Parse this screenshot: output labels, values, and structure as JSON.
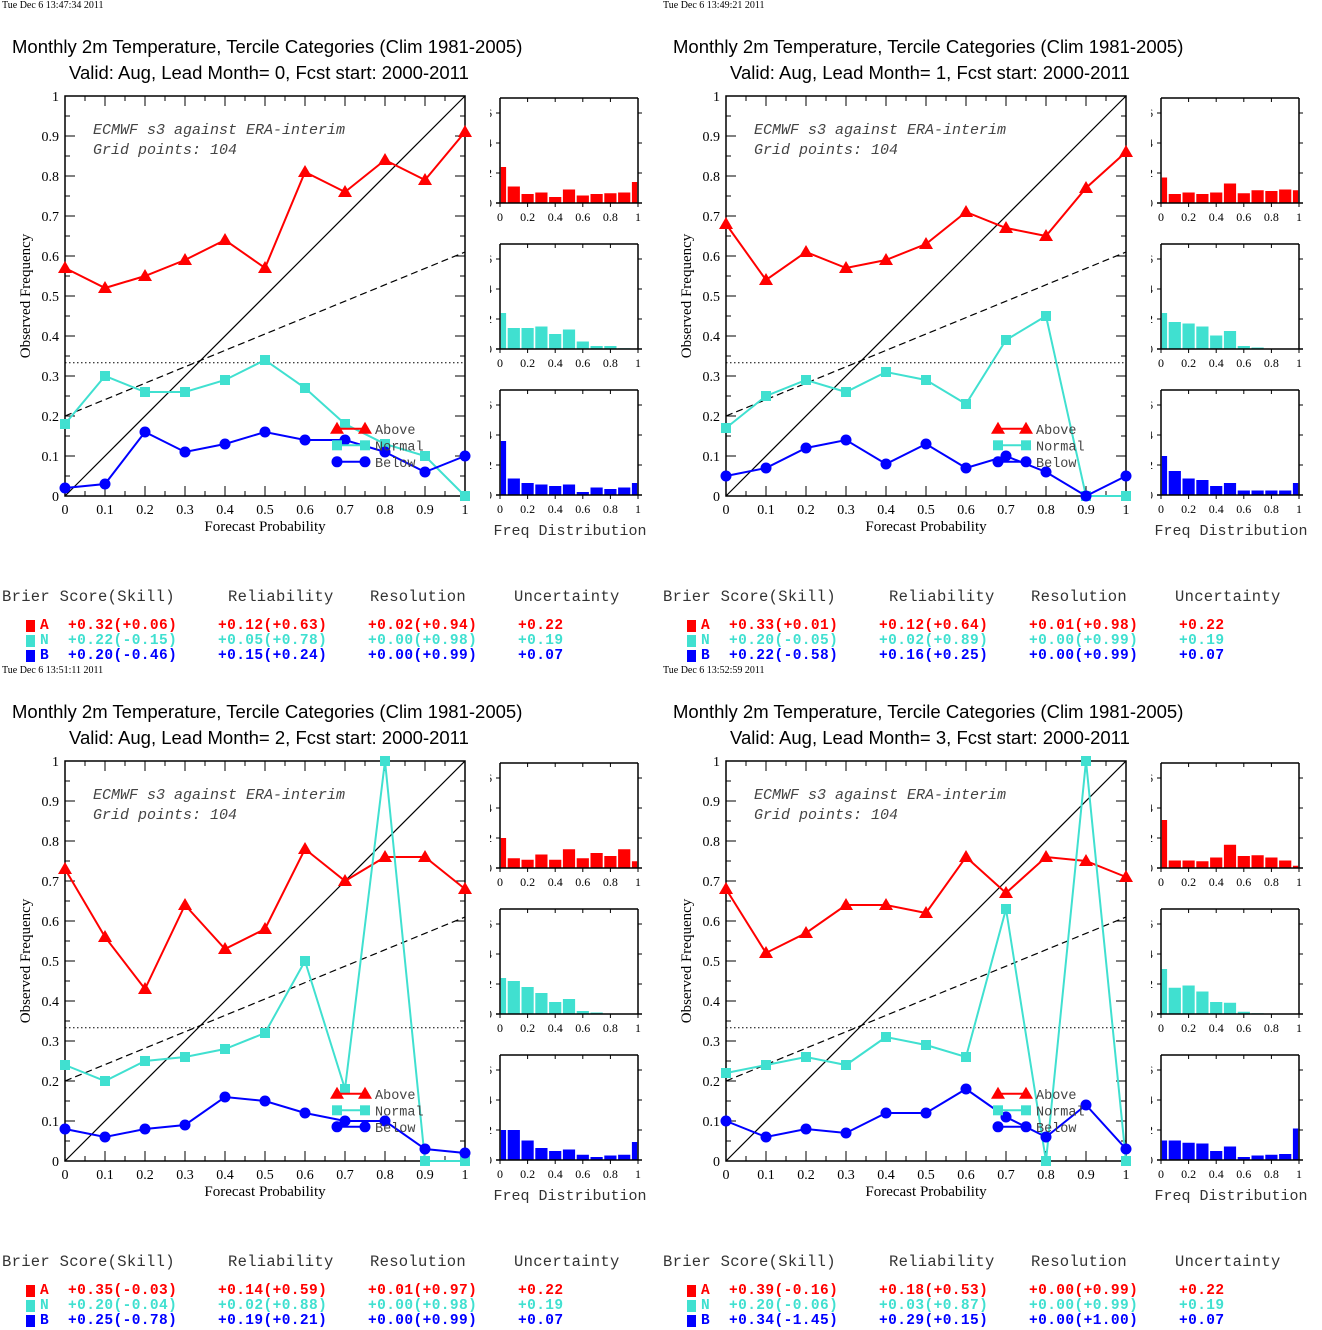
{
  "colors": {
    "above": "#ff0000",
    "normal": "#40e0d0",
    "below": "#0000ff",
    "axis": "#000000"
  },
  "panels": [
    {
      "timestamp": "Tue Dec  6 13:47:34 2011",
      "title": "Monthly 2m Temperature, Tercile Categories (Clim 1981-2005)",
      "subtitle": "Valid: Aug, Lead Month= 0, Fcst start: 2000-2011",
      "annotation_line1": "ECMWF s3 against ERA-interim",
      "annotation_line2": "Grid points:  104",
      "xlabel": "Forecast Probability",
      "ylabel": "Observed Frequency",
      "hist_label": "Freq Distribution",
      "legend": [
        "Above",
        "Normal",
        "Below"
      ],
      "stats": {
        "headers": [
          "Brier Score(Skill)",
          "Reliability",
          "Resolution",
          "Uncertainty"
        ],
        "rows": [
          {
            "label": "A",
            "cat": "above",
            "brier": "+0.32(+0.06)",
            "reliability": "+0.12(+0.63)",
            "resolution": "+0.02(+0.94)",
            "uncertainty": "+0.22"
          },
          {
            "label": "N",
            "cat": "normal",
            "brier": "+0.22(-0.15)",
            "reliability": "+0.05(+0.78)",
            "resolution": "+0.00(+0.98)",
            "uncertainty": "+0.19"
          },
          {
            "label": "B",
            "cat": "below",
            "brier": "+0.20(-0.46)",
            "reliability": "+0.15(+0.24)",
            "resolution": "+0.00(+0.99)",
            "uncertainty": "+0.07"
          }
        ]
      }
    },
    {
      "timestamp": "Tue Dec  6 13:49:21 2011",
      "title": "Monthly 2m Temperature, Tercile Categories (Clim 1981-2005)",
      "subtitle": "Valid: Aug, Lead Month= 1, Fcst start: 2000-2011",
      "annotation_line1": "ECMWF s3 against ERA-interim",
      "annotation_line2": "Grid points:  104",
      "xlabel": "Forecast Probability",
      "ylabel": "Observed Frequency",
      "hist_label": "Freq Distribution",
      "legend": [
        "Above",
        "Normal",
        "Below"
      ],
      "stats": {
        "headers": [
          "Brier Score(Skill)",
          "Reliability",
          "Resolution",
          "Uncertainty"
        ],
        "rows": [
          {
            "label": "A",
            "cat": "above",
            "brier": "+0.33(+0.01)",
            "reliability": "+0.12(+0.64)",
            "resolution": "+0.01(+0.98)",
            "uncertainty": "+0.22"
          },
          {
            "label": "N",
            "cat": "normal",
            "brier": "+0.20(-0.05)",
            "reliability": "+0.02(+0.89)",
            "resolution": "+0.00(+0.99)",
            "uncertainty": "+0.19"
          },
          {
            "label": "B",
            "cat": "below",
            "brier": "+0.22(-0.58)",
            "reliability": "+0.16(+0.25)",
            "resolution": "+0.00(+0.99)",
            "uncertainty": "+0.07"
          }
        ]
      }
    },
    {
      "timestamp": "Tue Dec  6 13:51:11 2011",
      "title": "Monthly 2m Temperature, Tercile Categories (Clim 1981-2005)",
      "subtitle": "Valid: Aug, Lead Month= 2, Fcst start: 2000-2011",
      "annotation_line1": "ECMWF s3 against ERA-interim",
      "annotation_line2": "Grid points:  104",
      "xlabel": "Forecast Probability",
      "ylabel": "Observed Frequency",
      "hist_label": "Freq Distribution",
      "legend": [
        "Above",
        "Normal",
        "Below"
      ],
      "stats": {
        "headers": [
          "Brier Score(Skill)",
          "Reliability",
          "Resolution",
          "Uncertainty"
        ],
        "rows": [
          {
            "label": "A",
            "cat": "above",
            "brier": "+0.35(-0.03)",
            "reliability": "+0.14(+0.59)",
            "resolution": "+0.01(+0.97)",
            "uncertainty": "+0.22"
          },
          {
            "label": "N",
            "cat": "normal",
            "brier": "+0.20(-0.04)",
            "reliability": "+0.02(+0.88)",
            "resolution": "+0.00(+0.98)",
            "uncertainty": "+0.19"
          },
          {
            "label": "B",
            "cat": "below",
            "brier": "+0.25(-0.78)",
            "reliability": "+0.19(+0.21)",
            "resolution": "+0.00(+0.99)",
            "uncertainty": "+0.07"
          }
        ]
      }
    },
    {
      "timestamp": "Tue Dec  6 13:52:59 2011",
      "title": "Monthly 2m Temperature, Tercile Categories (Clim 1981-2005)",
      "subtitle": "Valid: Aug, Lead Month= 3, Fcst start: 2000-2011",
      "annotation_line1": "ECMWF s3 against ERA-interim",
      "annotation_line2": "Grid points:  104",
      "xlabel": "Forecast Probability",
      "ylabel": "Observed Frequency",
      "hist_label": "Freq Distribution",
      "legend": [
        "Above",
        "Normal",
        "Below"
      ],
      "stats": {
        "headers": [
          "Brier Score(Skill)",
          "Reliability",
          "Resolution",
          "Uncertainty"
        ],
        "rows": [
          {
            "label": "A",
            "cat": "above",
            "brier": "+0.39(-0.16)",
            "reliability": "+0.18(+0.53)",
            "resolution": "+0.00(+0.99)",
            "uncertainty": "+0.22"
          },
          {
            "label": "N",
            "cat": "normal",
            "brier": "+0.20(-0.06)",
            "reliability": "+0.03(+0.87)",
            "resolution": "+0.00(+0.99)",
            "uncertainty": "+0.19"
          },
          {
            "label": "B",
            "cat": "below",
            "brier": "+0.34(-1.45)",
            "reliability": "+0.29(+0.15)",
            "resolution": "+0.00(+1.00)",
            "uncertainty": "+0.07"
          }
        ]
      }
    }
  ],
  "chart_data": [
    {
      "type": "line",
      "title": "Monthly 2m Temperature, Tercile Categories (Clim 1981-2005) — Valid: Aug, Lead Month= 0, Fcst start: 2000-2011",
      "xlabel": "Forecast Probability",
      "ylabel": "Observed Frequency",
      "xlim": [
        0,
        1
      ],
      "ylim": [
        0,
        1
      ],
      "x": [
        0,
        0.1,
        0.2,
        0.3,
        0.4,
        0.5,
        0.6,
        0.7,
        0.8,
        0.9,
        1.0
      ],
      "xticks": [
        "0",
        "0.1",
        "0.2",
        "0.3",
        "0.4",
        "0.5",
        "0.6",
        "0.7",
        "0.8",
        "0.9",
        "1"
      ],
      "yticks": [
        "0",
        "0.1",
        "0.2",
        "0.3",
        "0.4",
        "0.5",
        "0.6",
        "0.7",
        "0.8",
        "0.9",
        "1"
      ],
      "reference_lines": {
        "perfect_reliability": [
          [
            0,
            0
          ],
          [
            1,
            1
          ]
        ],
        "no_skill": [
          [
            0,
            0.2
          ],
          [
            1,
            0.61
          ]
        ],
        "climatology": 0.333
      },
      "legend_position": "bottom-right",
      "series": [
        {
          "name": "Above",
          "cat": "above",
          "marker": "triangle",
          "values": [
            0.57,
            0.52,
            0.55,
            0.59,
            0.64,
            0.57,
            0.81,
            0.76,
            0.84,
            0.79,
            0.91
          ]
        },
        {
          "name": "Normal",
          "cat": "normal",
          "marker": "square",
          "values": [
            0.18,
            0.3,
            0.26,
            0.26,
            0.29,
            0.34,
            0.27,
            0.18,
            0.13,
            0.1,
            0.0
          ]
        },
        {
          "name": "Below",
          "cat": "below",
          "marker": "circle",
          "values": [
            0.02,
            0.03,
            0.16,
            0.11,
            0.13,
            0.16,
            0.14,
            0.14,
            0.11,
            0.06,
            0.1
          ]
        }
      ],
      "histograms": {
        "title": "Freq Distribution",
        "ylim": [
          0,
          0.7
        ],
        "yticks": [
          "0",
          "0.2",
          "0.4",
          "0.6"
        ],
        "xticks": [
          "0",
          "0.2",
          "0.4",
          "0.6",
          "0.8",
          "1"
        ],
        "bins": [
          0,
          0.1,
          0.2,
          0.3,
          0.4,
          0.5,
          0.6,
          0.7,
          0.8,
          0.9,
          1.0
        ],
        "above": [
          0.24,
          0.11,
          0.06,
          0.07,
          0.04,
          0.09,
          0.05,
          0.06,
          0.065,
          0.07,
          0.14
        ],
        "normal": [
          0.24,
          0.14,
          0.14,
          0.15,
          0.1,
          0.13,
          0.05,
          0.02,
          0.02,
          0.005,
          0.0
        ],
        "below": [
          0.36,
          0.11,
          0.08,
          0.07,
          0.06,
          0.07,
          0.02,
          0.05,
          0.04,
          0.05,
          0.08
        ]
      }
    },
    {
      "type": "line",
      "title": "Monthly 2m Temperature, Tercile Categories (Clim 1981-2005) — Valid: Aug, Lead Month= 1, Fcst start: 2000-2011",
      "xlabel": "Forecast Probability",
      "ylabel": "Observed Frequency",
      "xlim": [
        0,
        1
      ],
      "ylim": [
        0,
        1
      ],
      "x": [
        0,
        0.1,
        0.2,
        0.3,
        0.4,
        0.5,
        0.6,
        0.7,
        0.8,
        0.9,
        1.0
      ],
      "xticks": [
        "0",
        "0.1",
        "0.2",
        "0.3",
        "0.4",
        "0.5",
        "0.6",
        "0.7",
        "0.8",
        "0.9",
        "1"
      ],
      "yticks": [
        "0",
        "0.1",
        "0.2",
        "0.3",
        "0.4",
        "0.5",
        "0.6",
        "0.7",
        "0.8",
        "0.9",
        "1"
      ],
      "reference_lines": {
        "perfect_reliability": [
          [
            0,
            0
          ],
          [
            1,
            1
          ]
        ],
        "no_skill": [
          [
            0,
            0.2
          ],
          [
            1,
            0.61
          ]
        ],
        "climatology": 0.333
      },
      "legend_position": "bottom-right",
      "series": [
        {
          "name": "Above",
          "cat": "above",
          "marker": "triangle",
          "values": [
            0.68,
            0.54,
            0.61,
            0.57,
            0.59,
            0.63,
            0.71,
            0.67,
            0.65,
            0.77,
            0.86
          ]
        },
        {
          "name": "Normal",
          "cat": "normal",
          "marker": "square",
          "values": [
            0.17,
            0.25,
            0.29,
            0.26,
            0.31,
            0.29,
            0.23,
            0.39,
            0.45,
            0.0,
            0.0
          ]
        },
        {
          "name": "Below",
          "cat": "below",
          "marker": "circle",
          "values": [
            0.05,
            0.07,
            0.12,
            0.14,
            0.08,
            0.13,
            0.07,
            0.1,
            0.06,
            0.0,
            0.05
          ]
        }
      ],
      "histograms": {
        "title": "Freq Distribution",
        "ylim": [
          0,
          0.7
        ],
        "yticks": [
          "0",
          "0.2",
          "0.4",
          "0.6"
        ],
        "xticks": [
          "0",
          "0.2",
          "0.4",
          "0.6",
          "0.8",
          "1"
        ],
        "bins": [
          0,
          0.1,
          0.2,
          0.3,
          0.4,
          0.5,
          0.6,
          0.7,
          0.8,
          0.9,
          1.0
        ],
        "above": [
          0.17,
          0.06,
          0.07,
          0.06,
          0.07,
          0.13,
          0.065,
          0.085,
          0.08,
          0.09,
          0.085
        ],
        "normal": [
          0.24,
          0.18,
          0.17,
          0.15,
          0.09,
          0.12,
          0.02,
          0.01,
          0.0,
          0.0,
          0.0
        ],
        "below": [
          0.26,
          0.16,
          0.11,
          0.1,
          0.06,
          0.08,
          0.03,
          0.03,
          0.03,
          0.03,
          0.08
        ]
      }
    },
    {
      "type": "line",
      "title": "Monthly 2m Temperature, Tercile Categories (Clim 1981-2005) — Valid: Aug, Lead Month= 2, Fcst start: 2000-2011",
      "xlabel": "Forecast Probability",
      "ylabel": "Observed Frequency",
      "xlim": [
        0,
        1
      ],
      "ylim": [
        0,
        1
      ],
      "x": [
        0,
        0.1,
        0.2,
        0.3,
        0.4,
        0.5,
        0.6,
        0.7,
        0.8,
        0.9,
        1.0
      ],
      "xticks": [
        "0",
        "0.1",
        "0.2",
        "0.3",
        "0.4",
        "0.5",
        "0.6",
        "0.7",
        "0.8",
        "0.9",
        "1"
      ],
      "yticks": [
        "0",
        "0.1",
        "0.2",
        "0.3",
        "0.4",
        "0.5",
        "0.6",
        "0.7",
        "0.8",
        "0.9",
        "1"
      ],
      "reference_lines": {
        "perfect_reliability": [
          [
            0,
            0
          ],
          [
            1,
            1
          ]
        ],
        "no_skill": [
          [
            0,
            0.2
          ],
          [
            1,
            0.61
          ]
        ],
        "climatology": 0.333
      },
      "legend_position": "bottom-right",
      "series": [
        {
          "name": "Above",
          "cat": "above",
          "marker": "triangle",
          "values": [
            0.73,
            0.56,
            0.43,
            0.64,
            0.53,
            0.58,
            0.78,
            0.7,
            0.76,
            0.76,
            0.68
          ]
        },
        {
          "name": "Normal",
          "cat": "normal",
          "marker": "square",
          "values": [
            0.24,
            0.2,
            0.25,
            0.26,
            0.28,
            0.32,
            0.5,
            0.18,
            1.0,
            0.0,
            0.0
          ]
        },
        {
          "name": "Below",
          "cat": "below",
          "marker": "circle",
          "values": [
            0.08,
            0.06,
            0.08,
            0.09,
            0.16,
            0.15,
            0.12,
            0.1,
            0.1,
            0.03,
            0.02
          ]
        }
      ],
      "histograms": {
        "title": "Freq Distribution",
        "ylim": [
          0,
          0.7
        ],
        "yticks": [
          "0",
          "0.2",
          "0.4",
          "0.6"
        ],
        "xticks": [
          "0",
          "0.2",
          "0.4",
          "0.6",
          "0.8",
          "1"
        ],
        "bins": [
          0,
          0.1,
          0.2,
          0.3,
          0.4,
          0.5,
          0.6,
          0.7,
          0.8,
          0.9,
          1.0
        ],
        "above": [
          0.2,
          0.065,
          0.055,
          0.09,
          0.055,
          0.125,
          0.065,
          0.1,
          0.08,
          0.125,
          0.045
        ],
        "normal": [
          0.24,
          0.22,
          0.18,
          0.14,
          0.08,
          0.1,
          0.02,
          0.01,
          0.0,
          0.0,
          0.0
        ],
        "below": [
          0.2,
          0.2,
          0.13,
          0.08,
          0.06,
          0.07,
          0.035,
          0.02,
          0.03,
          0.035,
          0.12
        ]
      }
    },
    {
      "type": "line",
      "title": "Monthly 2m Temperature, Tercile Categories (Clim 1981-2005) — Valid: Aug, Lead Month= 3, Fcst start: 2000-2011",
      "xlabel": "Forecast Probability",
      "ylabel": "Observed Frequency",
      "xlim": [
        0,
        1
      ],
      "ylim": [
        0,
        1
      ],
      "x": [
        0,
        0.1,
        0.2,
        0.3,
        0.4,
        0.5,
        0.6,
        0.7,
        0.8,
        0.9,
        1.0
      ],
      "xticks": [
        "0",
        "0.1",
        "0.2",
        "0.3",
        "0.4",
        "0.5",
        "0.6",
        "0.7",
        "0.8",
        "0.9",
        "1"
      ],
      "yticks": [
        "0",
        "0.1",
        "0.2",
        "0.3",
        "0.4",
        "0.5",
        "0.6",
        "0.7",
        "0.8",
        "0.9",
        "1"
      ],
      "reference_lines": {
        "perfect_reliability": [
          [
            0,
            0
          ],
          [
            1,
            1
          ]
        ],
        "no_skill": [
          [
            0,
            0.2
          ],
          [
            1,
            0.61
          ]
        ],
        "climatology": 0.333
      },
      "legend_position": "bottom-right",
      "series": [
        {
          "name": "Above",
          "cat": "above",
          "marker": "triangle",
          "values": [
            0.68,
            0.52,
            0.57,
            0.64,
            0.64,
            0.62,
            0.76,
            0.67,
            0.76,
            0.75,
            0.71
          ]
        },
        {
          "name": "Normal",
          "cat": "normal",
          "marker": "square",
          "values": [
            0.22,
            0.24,
            0.26,
            0.24,
            0.31,
            0.29,
            0.26,
            0.63,
            0.0,
            1.0,
            0.0
          ]
        },
        {
          "name": "Below",
          "cat": "below",
          "marker": "circle",
          "values": [
            0.1,
            0.06,
            0.08,
            0.07,
            0.12,
            0.12,
            0.18,
            0.11,
            0.06,
            0.14,
            0.03
          ]
        }
      ],
      "histograms": {
        "title": "Freq Distribution",
        "ylim": [
          0,
          0.7
        ],
        "yticks": [
          "0",
          "0.2",
          "0.4",
          "0.6"
        ],
        "xticks": [
          "0",
          "0.2",
          "0.4",
          "0.6",
          "0.8",
          "1"
        ],
        "bins": [
          0,
          0.1,
          0.2,
          0.3,
          0.4,
          0.5,
          0.6,
          0.7,
          0.8,
          0.9,
          1.0
        ],
        "above": [
          0.32,
          0.05,
          0.05,
          0.045,
          0.07,
          0.155,
          0.08,
          0.085,
          0.07,
          0.05,
          0.015
        ],
        "normal": [
          0.3,
          0.175,
          0.19,
          0.15,
          0.08,
          0.075,
          0.015,
          0.005,
          0.0,
          0.0,
          0.0
        ],
        "below": [
          0.13,
          0.13,
          0.115,
          0.11,
          0.06,
          0.09,
          0.02,
          0.03,
          0.035,
          0.04,
          0.21
        ]
      }
    }
  ]
}
